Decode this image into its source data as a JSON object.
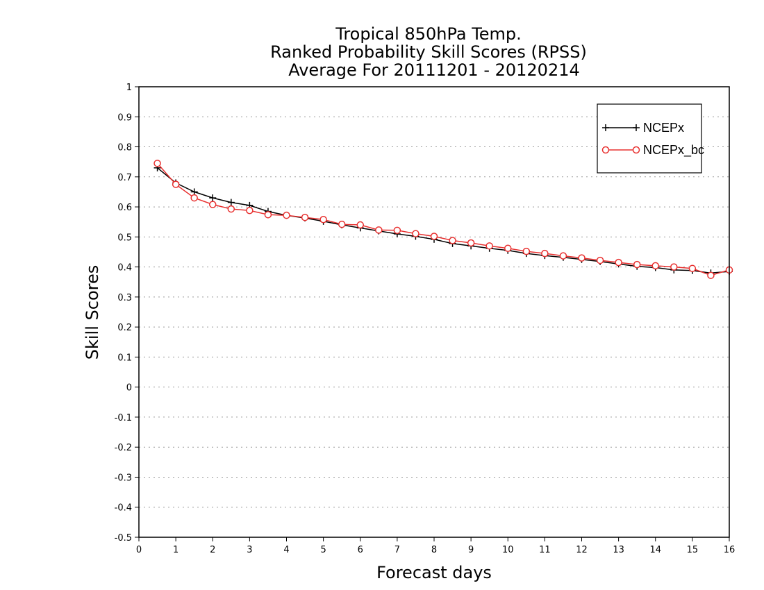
{
  "chart_data": {
    "type": "line",
    "title": [
      "Tropical 850hPa Temp.",
      "Ranked Probability Skill Scores (RPSS)",
      "Average For 20111201 - 20120214"
    ],
    "xlabel": "Forecast days",
    "ylabel": "Skill Scores",
    "xlim": [
      0,
      16
    ],
    "ylim": [
      -0.5,
      1
    ],
    "x_ticks": [
      "0",
      "1",
      "2",
      "3",
      "4",
      "5",
      "6",
      "7",
      "8",
      "9",
      "10",
      "11",
      "12",
      "13",
      "14",
      "15",
      "16"
    ],
    "y_ticks": [
      "1",
      "0.9",
      "0.8",
      "0.7",
      "0.6",
      "0.5",
      "0.4",
      "0.3",
      "0.2",
      "0.1",
      "0",
      "-0.1",
      "-0.2",
      "-0.3",
      "-0.4",
      "-0.5"
    ],
    "grid": "horizontal dotted",
    "legend_position": "top-right",
    "x": [
      0.5,
      1.0,
      1.5,
      2.0,
      2.5,
      3.0,
      3.5,
      4.0,
      4.5,
      5.0,
      5.5,
      6.0,
      6.5,
      7.0,
      7.5,
      8.0,
      8.5,
      9.0,
      9.5,
      10.0,
      10.5,
      11.0,
      11.5,
      12.0,
      12.5,
      13.0,
      13.5,
      14.0,
      14.5,
      15.0,
      15.5,
      16.0
    ],
    "series": [
      {
        "name": "NCEPx",
        "color": "#000000",
        "marker": "plus",
        "values": [
          0.73,
          0.68,
          0.65,
          0.63,
          0.615,
          0.605,
          0.585,
          0.572,
          0.563,
          0.552,
          0.54,
          0.53,
          0.52,
          0.51,
          0.502,
          0.492,
          0.478,
          0.47,
          0.462,
          0.455,
          0.445,
          0.438,
          0.432,
          0.425,
          0.418,
          0.41,
          0.402,
          0.398,
          0.39,
          0.388,
          0.38,
          0.385
        ]
      },
      {
        "name": "NCEPx_bc",
        "color": "#e8302f",
        "marker": "circle",
        "values": [
          0.745,
          0.675,
          0.63,
          0.608,
          0.593,
          0.588,
          0.574,
          0.572,
          0.565,
          0.558,
          0.542,
          0.54,
          0.523,
          0.522,
          0.511,
          0.502,
          0.488,
          0.48,
          0.47,
          0.462,
          0.452,
          0.445,
          0.437,
          0.43,
          0.422,
          0.415,
          0.408,
          0.404,
          0.4,
          0.395,
          0.372,
          0.39
        ]
      }
    ]
  }
}
